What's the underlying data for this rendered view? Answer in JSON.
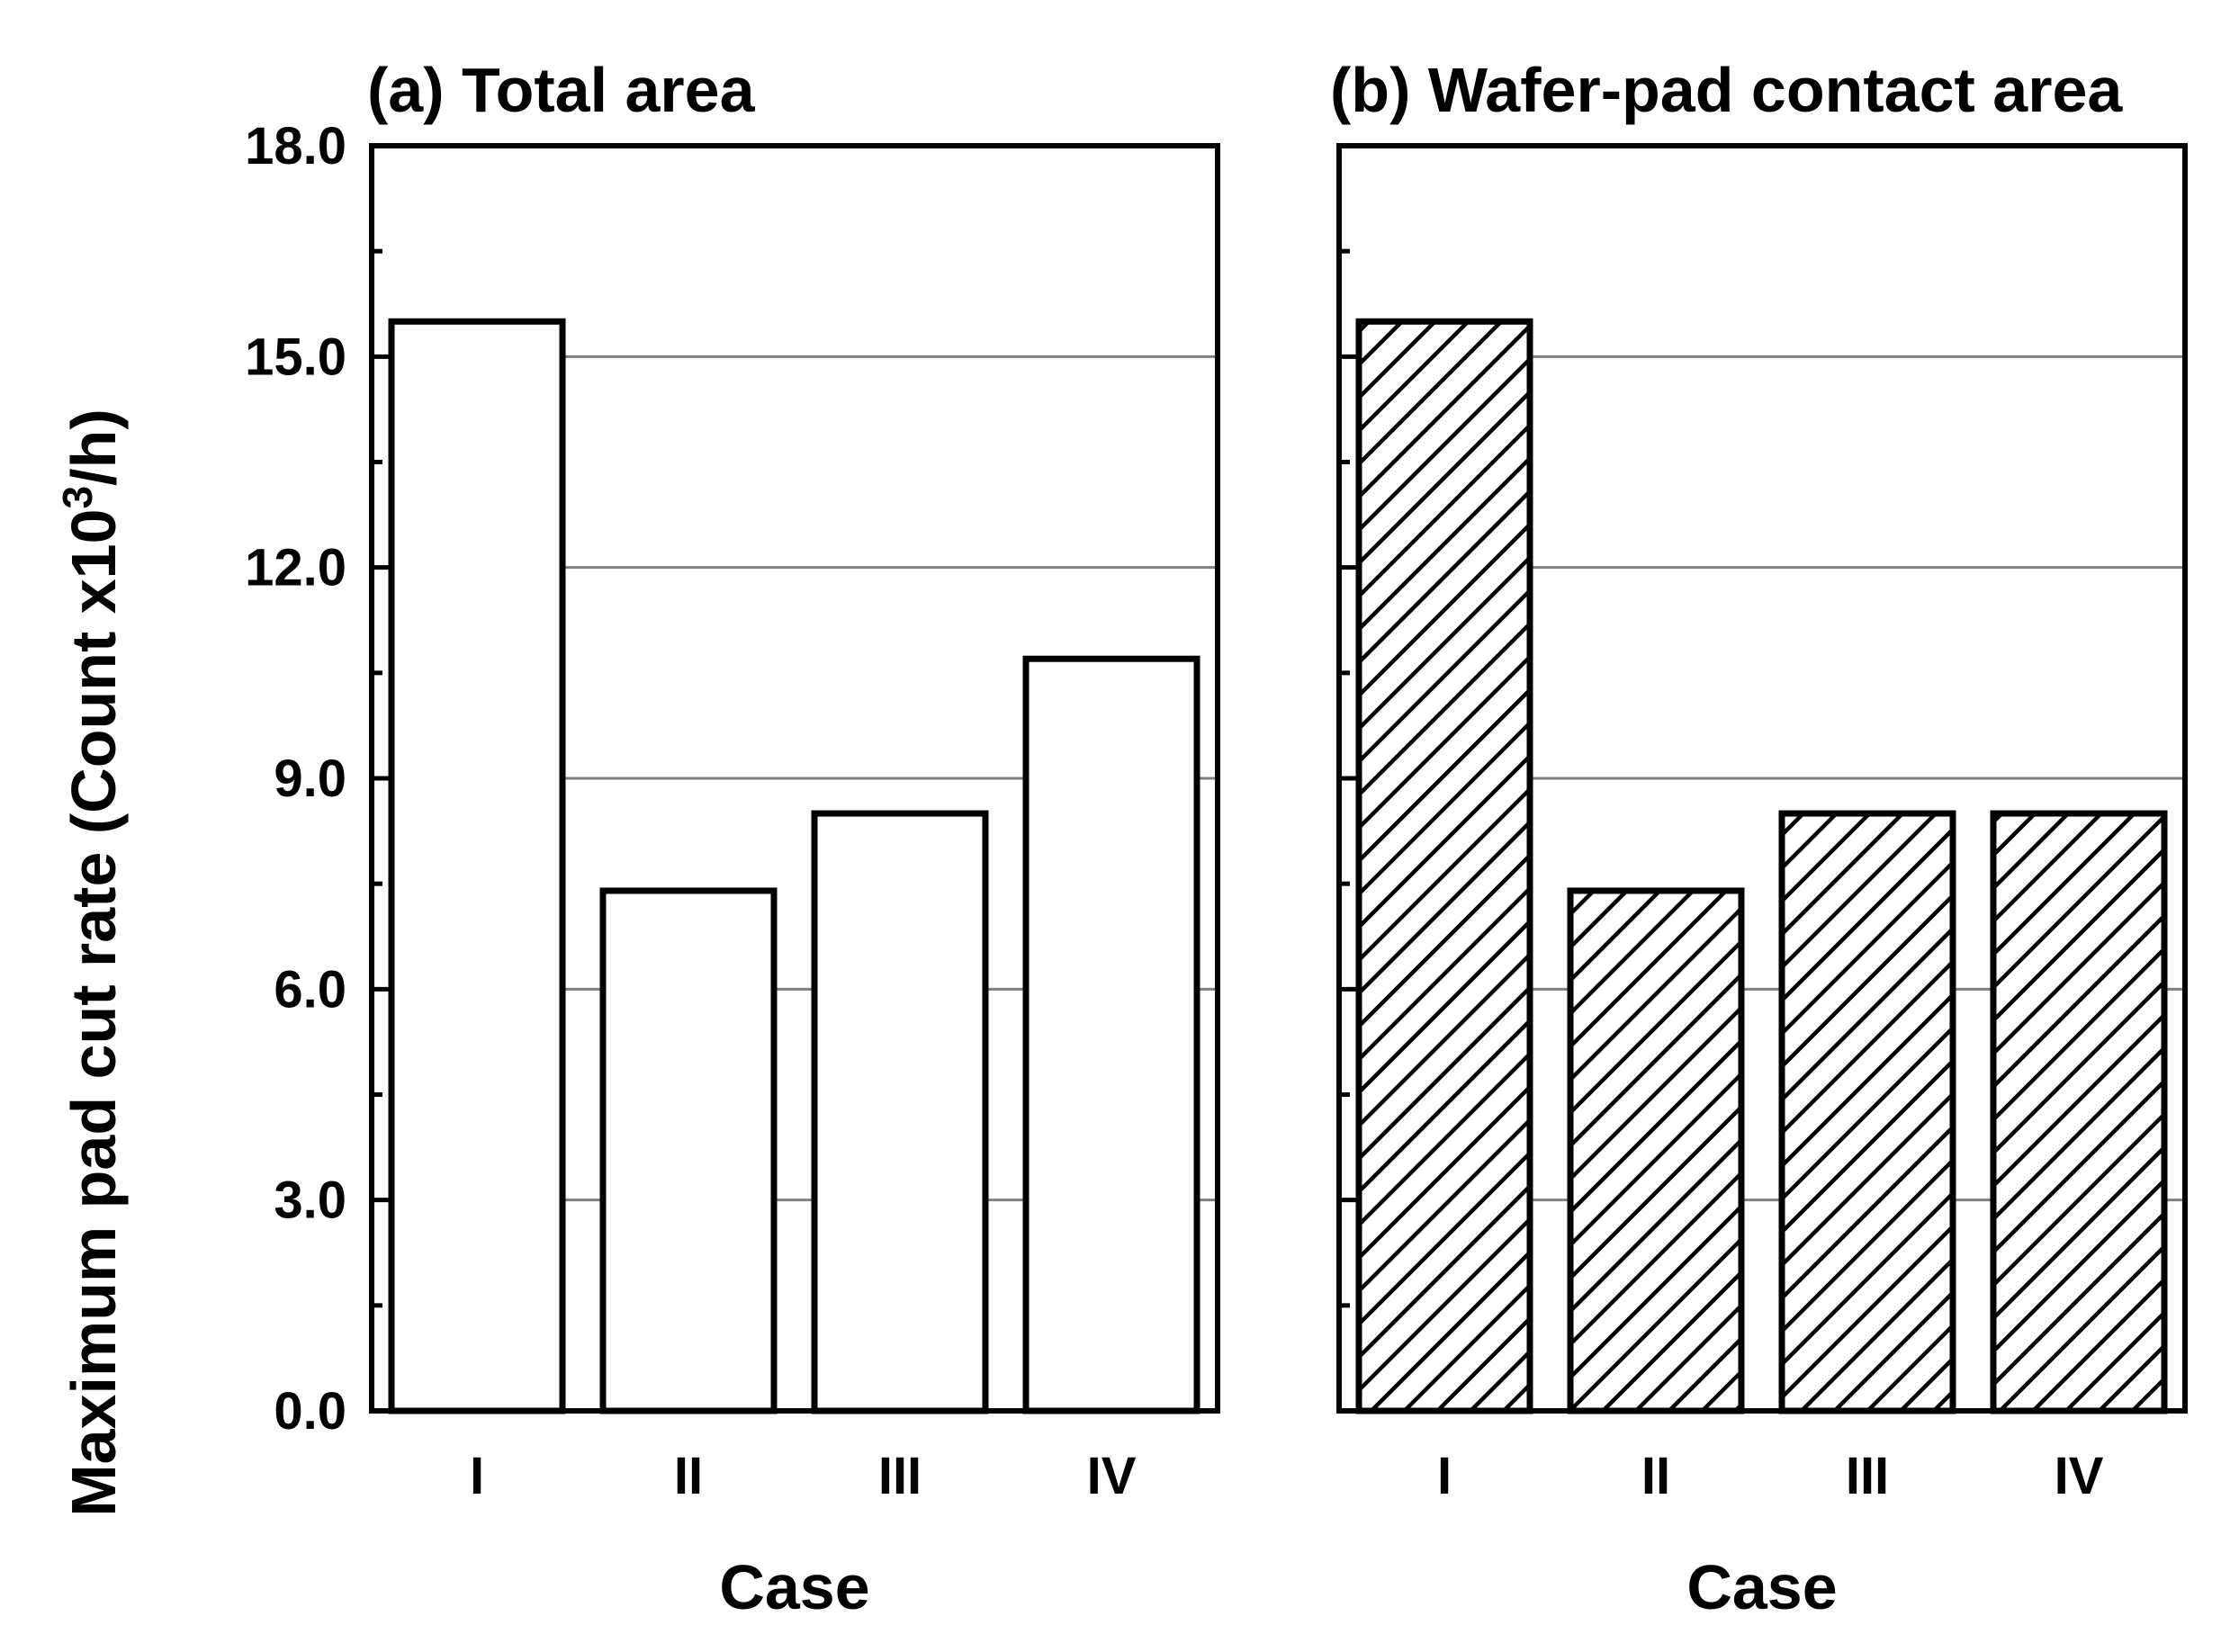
{
  "chart_data": [
    {
      "type": "bar",
      "title": "(a) Total area",
      "categories": [
        "I",
        "II",
        "III",
        "IV"
      ],
      "values": [
        15.5,
        7.4,
        8.5,
        10.7
      ],
      "xlabel": "Case",
      "ylabel": "Maximum pad cut rate (Count x10",
      "ylabel_sup": "3",
      "ylabel_tail": "/h)",
      "ylim": [
        0,
        18
      ],
      "yticks": [
        "0.0",
        "3.0",
        "6.0",
        "9.0",
        "12.0",
        "15.0",
        "18.0"
      ],
      "fill": "open",
      "grid": true
    },
    {
      "type": "bar",
      "title": "(b) Wafer-pad contact area",
      "categories": [
        "I",
        "II",
        "III",
        "IV"
      ],
      "values": [
        15.5,
        7.4,
        8.5,
        8.5
      ],
      "xlabel": "Case",
      "ylim": [
        0,
        18
      ],
      "fill": "hatched",
      "grid": true
    }
  ],
  "colors": {
    "bar_edge": "#000000",
    "grid": "#808080",
    "background": "#ffffff"
  }
}
